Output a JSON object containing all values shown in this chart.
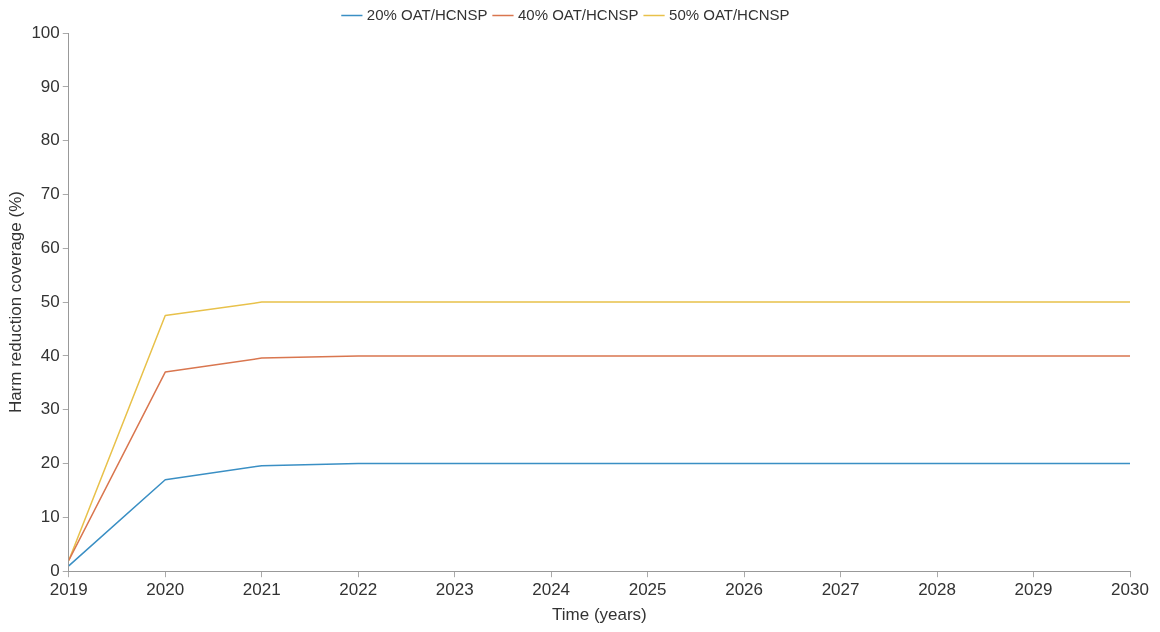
{
  "chart_data": {
    "type": "line",
    "xlabel": "Time (years)",
    "ylabel": "Harm reduction coverage (%)",
    "x": [
      2019,
      2020,
      2021,
      2022,
      2023,
      2024,
      2025,
      2026,
      2027,
      2028,
      2029,
      2030
    ],
    "series": [
      {
        "name": "20% OAT/HCNSP",
        "color": "#3a8fc4",
        "values": [
          1,
          17,
          19.6,
          20,
          20,
          20,
          20,
          20,
          20,
          20,
          20,
          20
        ]
      },
      {
        "name": "40% OAT/HCNSP",
        "color": "#d9764f",
        "values": [
          2,
          37,
          39.6,
          40,
          40,
          40,
          40,
          40,
          40,
          40,
          40,
          40
        ]
      },
      {
        "name": "50% OAT/HCNSP",
        "color": "#e8c14a",
        "values": [
          2,
          47.5,
          50,
          50,
          50,
          50,
          50,
          50,
          50,
          50,
          50,
          50
        ]
      }
    ],
    "xlim": [
      2019,
      2030
    ],
    "xticks": [
      2019,
      2020,
      2021,
      2022,
      2023,
      2024,
      2025,
      2026,
      2027,
      2028,
      2029,
      2030
    ],
    "ylim": [
      0,
      100
    ],
    "yticks": [
      0,
      10,
      20,
      30,
      40,
      50,
      60,
      70,
      80,
      90,
      100
    ],
    "grid": false,
    "legend": "top",
    "marker": "none",
    "line_style": "solid"
  }
}
